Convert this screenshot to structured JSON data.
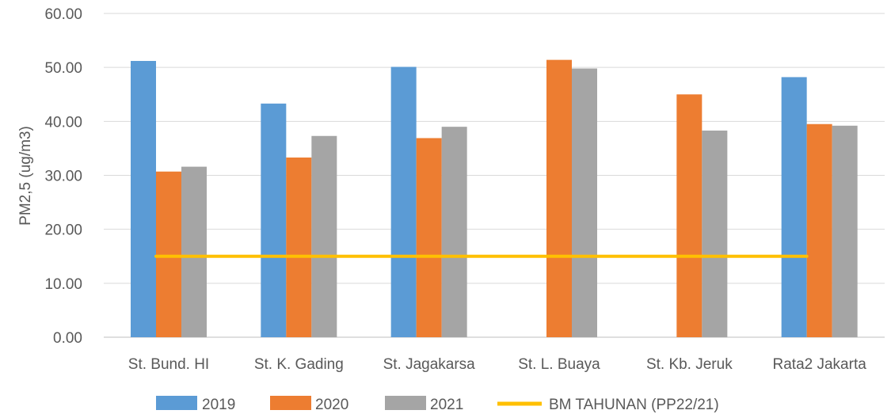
{
  "chart_data": {
    "type": "bar",
    "title": "",
    "xlabel": "",
    "ylabel": "PM2,5 (ug/m3)",
    "ylim": [
      0,
      60
    ],
    "ytick_values": [
      0,
      10,
      20,
      30,
      40,
      50,
      60
    ],
    "ytick_labels": [
      "0.00",
      "10.00",
      "20.00",
      "30.00",
      "40.00",
      "50.00",
      "60.00"
    ],
    "grid": true,
    "legend_position": "bottom",
    "categories": [
      "St. Bund. HI",
      "St. K. Gading",
      "St. Jagakarsa",
      "St. L. Buaya",
      "St. Kb. Jeruk",
      "Rata2 Jakarta"
    ],
    "series": [
      {
        "name": "2019",
        "color": "#5B9BD5",
        "values": [
          51.2,
          43.3,
          50.1,
          null,
          null,
          48.2
        ]
      },
      {
        "name": "2020",
        "color": "#ED7D31",
        "values": [
          30.7,
          33.3,
          36.9,
          51.4,
          45.0,
          39.5
        ]
      },
      {
        "name": "2021",
        "color": "#A5A5A5",
        "values": [
          31.6,
          37.3,
          39.0,
          49.8,
          38.3,
          39.2
        ]
      }
    ],
    "reference_line": {
      "name": "BM TAHUNAN (PP22/21)",
      "color": "#FFC000",
      "value": 15
    }
  }
}
